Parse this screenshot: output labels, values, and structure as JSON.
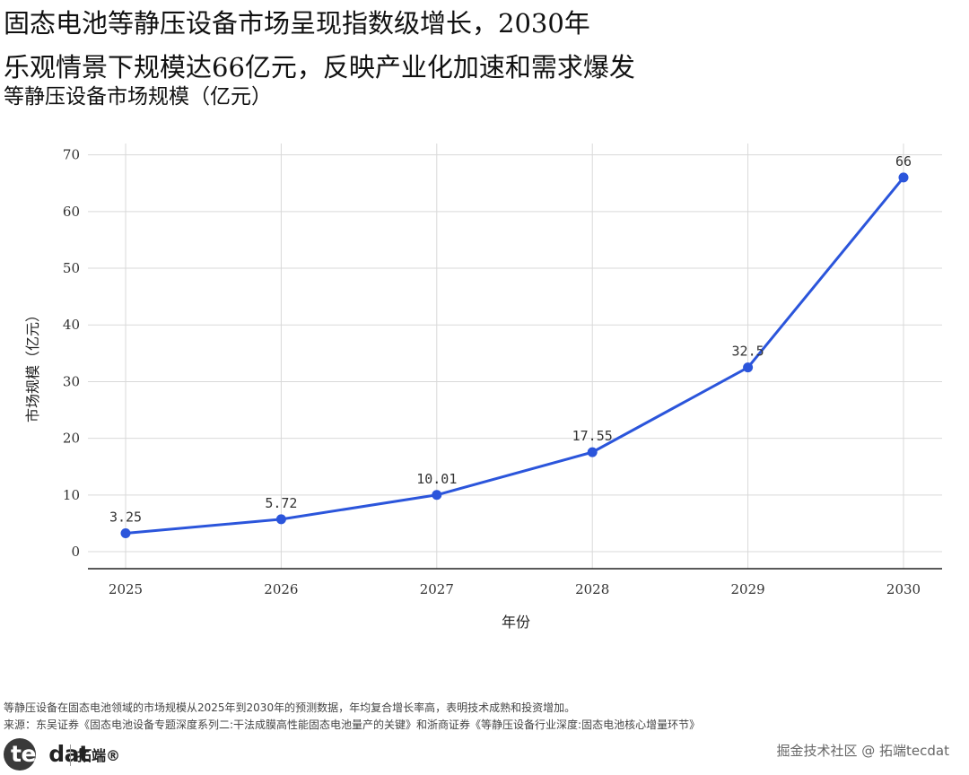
{
  "header": {
    "title_line1": "固态电池等静压设备市场呈现指数级增长，2030年",
    "title_line2": "乐观情景下规模达66亿元，反映产业化加速和需求爆发",
    "subtitle": "等静压设备市场规模（亿元）"
  },
  "chart_data": {
    "type": "line",
    "x": [
      2025,
      2026,
      2027,
      2028,
      2029,
      2030
    ],
    "categories": [
      "2025",
      "2026",
      "2027",
      "2028",
      "2029",
      "2030"
    ],
    "series": [
      {
        "name": "",
        "values": [
          3.25,
          5.72,
          10.01,
          17.55,
          32.5,
          66
        ],
        "color": "#2b55db"
      }
    ],
    "data_labels": [
      "3.25",
      "5.72",
      "10.01",
      "17.55",
      "32.5",
      "66"
    ],
    "xlabel": "年份",
    "ylabel": "市场规模（亿元）",
    "ylim": [
      -3,
      72
    ],
    "yticks": [
      0,
      10,
      20,
      30,
      40,
      50,
      60,
      70
    ],
    "grid": true,
    "legend": "none"
  },
  "footer": {
    "note": "等静压设备在固态电池领域的市场规模从2025年到2030年的预测数据，年均复合增长率高，表明技术成熟和投资增加。",
    "source": "来源：东吴证券《固态电池设备专题深度系列二:干法成膜高性能固态电池量产的关键》和浙商证券《等静压设备行业深度:固态电池核心增量环节》",
    "logo_text_1": "tec",
    "logo_text_2": "dat",
    "logo_cn": "拓端®",
    "watermark": "掘金技术社区 @ 拓端tecdat"
  }
}
